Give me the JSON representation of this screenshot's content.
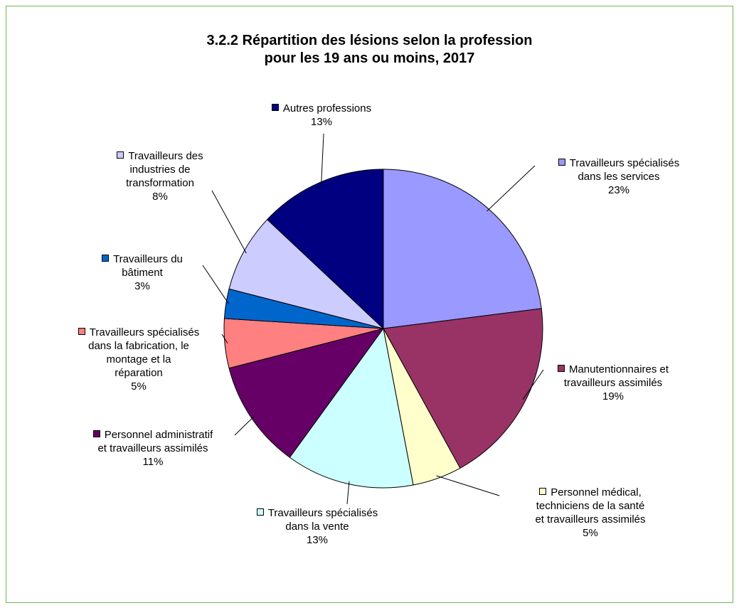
{
  "chart_data": {
    "type": "pie",
    "title": "3.2.2 Répartition des lésions selon la profession\npour les 19 ans ou moins, 2017",
    "categories": [
      "Travailleurs spécialisés\ndans les services",
      "Manutentionnaires  et\ntravailleurs assimilés",
      "Personnel médical,\ntechniciens de la santé\net travailleurs assimilés",
      "Travailleurs spécialisés\ndans la vente",
      "Personnel administratif\net travailleurs assimilés",
      "Travailleurs spécialisés\ndans la fabrication, le\nmontage et la\nréparation",
      "Travailleurs du\nbâtiment",
      "Travailleurs des\nindustries de\ntransformation",
      "Autres professions"
    ],
    "values": [
      23,
      19,
      5,
      13,
      11,
      5,
      3,
      8,
      13
    ],
    "value_labels": [
      "23%",
      "19%",
      "5%",
      "13%",
      "11%",
      "5%",
      "3%",
      "8%",
      "13%"
    ],
    "colors": [
      "#9999ff",
      "#993366",
      "#ffffcc",
      "#ccffff",
      "#660066",
      "#ff8080",
      "#0066cc",
      "#ccccff",
      "#000080"
    ]
  }
}
